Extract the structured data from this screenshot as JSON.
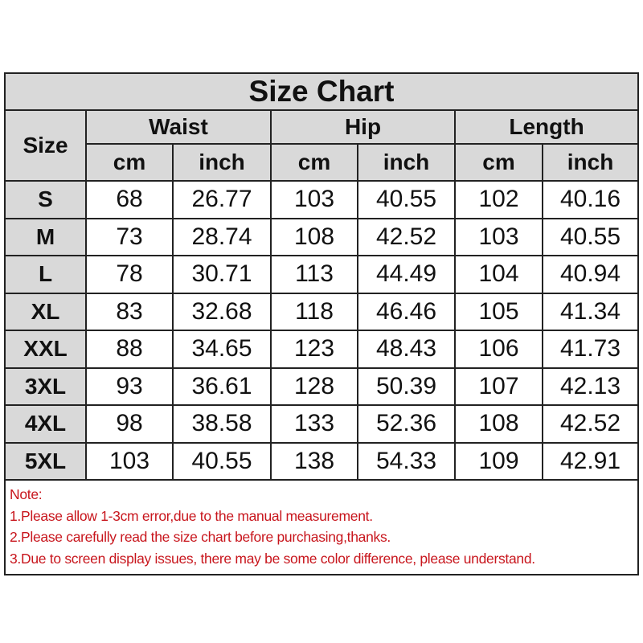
{
  "title": "Size Chart",
  "headers": {
    "size": "Size",
    "groups": [
      "Waist",
      "Hip",
      "Length"
    ],
    "units": [
      "cm",
      "inch",
      "cm",
      "inch",
      "cm",
      "inch"
    ]
  },
  "rows": [
    [
      "S",
      "68",
      "26.77",
      "103",
      "40.55",
      "102",
      "40.16"
    ],
    [
      "M",
      "73",
      "28.74",
      "108",
      "42.52",
      "103",
      "40.55"
    ],
    [
      "L",
      "78",
      "30.71",
      "113",
      "44.49",
      "104",
      "40.94"
    ],
    [
      "XL",
      "83",
      "32.68",
      "118",
      "46.46",
      "105",
      "41.34"
    ],
    [
      "XXL",
      "88",
      "34.65",
      "123",
      "48.43",
      "106",
      "41.73"
    ],
    [
      "3XL",
      "93",
      "36.61",
      "128",
      "50.39",
      "107",
      "42.13"
    ],
    [
      "4XL",
      "98",
      "38.58",
      "133",
      "52.36",
      "108",
      "42.52"
    ],
    [
      "5XL",
      "103",
      "40.55",
      "138",
      "54.33",
      "109",
      "42.91"
    ]
  ],
  "notes": {
    "heading": "Note:",
    "items": [
      "1.Please allow 1-3cm  error,due to the manual measurement.",
      "2.Please carefully read the size chart before purchasing,thanks.",
      "3.Due to screen display issues, there may be some color difference, please understand."
    ]
  },
  "colors": {
    "header_bg": "#d9d9d9",
    "note_text": "#c8161d",
    "border": "#222222"
  }
}
